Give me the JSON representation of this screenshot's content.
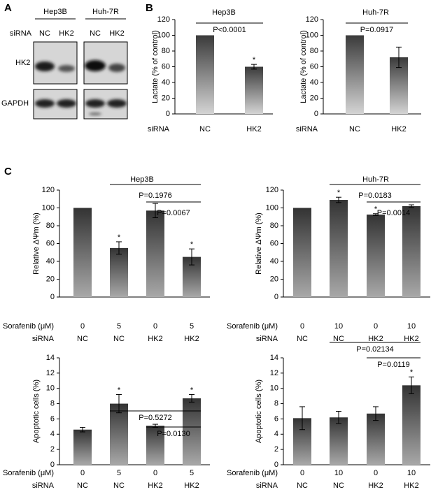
{
  "panels": [
    "A",
    "B",
    "C"
  ],
  "blot": {
    "lines": [
      "Hep3B",
      "Huh-7R"
    ],
    "row_label": "siRNA",
    "lanes": [
      "NC",
      "HK2",
      "NC",
      "HK2"
    ],
    "proteins": [
      "HK2",
      "GAPDH"
    ]
  },
  "chart_data": [
    {
      "type": "bar",
      "title": "Hep3B",
      "ylabel": "Lactate (% of control)",
      "category_label": "siRNA",
      "categories": [
        "NC",
        "HK2"
      ],
      "values": [
        100,
        60
      ],
      "errors": [
        null,
        3
      ],
      "significance": [
        null,
        "*"
      ],
      "comparisons": [
        "P<0.0001"
      ],
      "ylim": [
        0,
        120
      ],
      "yticks": [
        0,
        20,
        40,
        60,
        80,
        100,
        120
      ],
      "gradient": [
        "#3a3a3a",
        "#d4d4d4"
      ]
    },
    {
      "type": "bar",
      "title": "Huh-7R",
      "ylabel": "Lactate (% of control)",
      "category_label": "siRNA",
      "categories": [
        "NC",
        "HK2"
      ],
      "values": [
        100,
        72
      ],
      "errors": [
        null,
        13
      ],
      "significance": [
        null,
        null
      ],
      "comparisons": [
        "P=0.0917"
      ],
      "ylim": [
        0,
        120
      ],
      "yticks": [
        0,
        20,
        40,
        60,
        80,
        100,
        120
      ],
      "gradient": [
        "#3a3a3a",
        "#d4d4d4"
      ]
    },
    {
      "type": "bar",
      "title": "Hep3B",
      "ylabel": "Relative ΔΨm (%)",
      "category_label": "siRNA",
      "categories": [
        "NC",
        "NC",
        "HK2",
        "HK2"
      ],
      "sorafenib": {
        "label": "Sorafenib (μM)",
        "values": [
          0,
          5,
          0,
          5
        ]
      },
      "values": [
        100,
        55,
        97,
        45
      ],
      "errors": [
        null,
        7,
        8,
        9
      ],
      "significance": [
        null,
        "*",
        null,
        "*"
      ],
      "comparisons": [
        "P=0.1976",
        "P=0.0067"
      ],
      "ylim": [
        0,
        120
      ],
      "yticks": [
        0,
        20,
        40,
        60,
        80,
        100,
        120
      ],
      "gradient": [
        "#333333",
        "#a8a8a8"
      ]
    },
    {
      "type": "bar",
      "title": "Huh-7R",
      "ylabel": "Relative ΔΨm (%)",
      "category_label": "siRNA",
      "categories": [
        "NC",
        "NC",
        "HK2",
        "HK2"
      ],
      "sorafenib": {
        "label": "Sorafenib (μM)",
        "values": [
          0,
          10,
          0,
          10
        ]
      },
      "values": [
        100,
        109,
        92.5,
        102
      ],
      "errors": [
        null,
        3,
        1,
        1.5
      ],
      "significance": [
        null,
        "*",
        "*",
        null
      ],
      "comparisons": [
        "P=0.0183",
        "P=0.0014"
      ],
      "ylim": [
        0,
        120
      ],
      "yticks": [
        0,
        20,
        40,
        60,
        80,
        100,
        120
      ],
      "gradient": [
        "#333333",
        "#a8a8a8"
      ]
    },
    {
      "type": "bar",
      "ylabel": "Apoptotic cells (%)",
      "category_label": "siRNA",
      "categories": [
        "NC",
        "NC",
        "HK2",
        "HK2"
      ],
      "sorafenib": {
        "label": "Sorafenib (μM)",
        "values": [
          0,
          5,
          0,
          5
        ]
      },
      "values": [
        4.6,
        8.0,
        5.1,
        8.7
      ],
      "errors": [
        0.3,
        1.2,
        0.2,
        0.5
      ],
      "significance": [
        null,
        "*",
        null,
        "*"
      ],
      "comparisons": [
        "P=0.5272",
        "P=0.0130"
      ],
      "ylim": [
        0,
        14
      ],
      "yticks": [
        0,
        2,
        4,
        6,
        8,
        10,
        12,
        14
      ],
      "gradient": [
        "#333333",
        "#a8a8a8"
      ]
    },
    {
      "type": "bar",
      "ylabel": "Apoptotic cells (%)",
      "category_label": "siRNA",
      "categories": [
        "NC",
        "NC",
        "HK2",
        "HK2"
      ],
      "sorafenib": {
        "label": "Sorafenib (μM)",
        "values": [
          0,
          10,
          0,
          10
        ]
      },
      "values": [
        6.1,
        6.2,
        6.7,
        10.4
      ],
      "errors": [
        1.5,
        0.8,
        0.9,
        1.1
      ],
      "significance": [
        null,
        null,
        null,
        "*"
      ],
      "comparisons": [
        "P=0.02134",
        "P=0.0119"
      ],
      "ylim": [
        0,
        14
      ],
      "yticks": [
        0,
        2,
        4,
        6,
        8,
        10,
        12,
        14
      ],
      "gradient": [
        "#333333",
        "#a8a8a8"
      ]
    }
  ]
}
